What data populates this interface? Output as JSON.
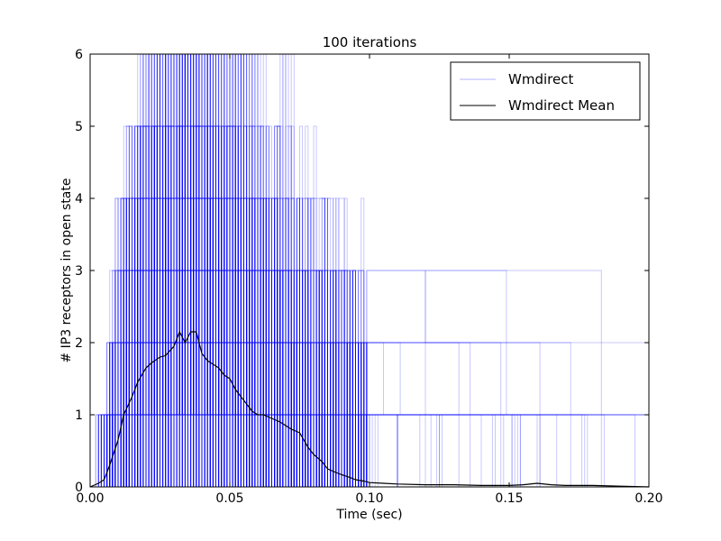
{
  "chart_data": {
    "type": "line",
    "title": "100 iterations",
    "xlabel": "Time (sec)",
    "ylabel": "# IP3 receptors in open state",
    "xlim": [
      0.0,
      0.2
    ],
    "ylim": [
      0,
      6
    ],
    "x_ticks": [
      0.0,
      0.05,
      0.1,
      0.15,
      0.2
    ],
    "x_tick_labels": [
      "0.00",
      "0.05",
      "0.10",
      "0.15",
      "0.20"
    ],
    "y_ticks": [
      0,
      1,
      2,
      3,
      4,
      5,
      6
    ],
    "y_tick_labels": [
      "0",
      "1",
      "2",
      "3",
      "4",
      "5",
      "6"
    ],
    "grid": false,
    "legend_position": "top-right",
    "iterations": 100,
    "series": [
      {
        "name": "Wmdirect",
        "color": "#0000ff",
        "style": "thin-transparent",
        "description_values": "100 stochastic trajectories taking integer values 0–6, dense between 0.00 and 0.08 s, sparse to 0.19 s"
      },
      {
        "name": "Wmdirect Mean",
        "color": "#000000",
        "x": [
          0.0,
          0.003,
          0.005,
          0.007,
          0.01,
          0.012,
          0.015,
          0.017,
          0.02,
          0.022,
          0.025,
          0.027,
          0.03,
          0.032,
          0.034,
          0.036,
          0.038,
          0.04,
          0.042,
          0.044,
          0.046,
          0.048,
          0.05,
          0.052,
          0.054,
          0.056,
          0.058,
          0.06,
          0.062,
          0.065,
          0.068,
          0.07,
          0.072,
          0.075,
          0.078,
          0.08,
          0.083,
          0.085,
          0.088,
          0.09,
          0.093,
          0.095,
          0.098,
          0.1,
          0.105,
          0.11,
          0.12,
          0.13,
          0.14,
          0.15,
          0.155,
          0.16,
          0.165,
          0.17,
          0.175,
          0.18,
          0.19,
          0.2
        ],
        "y": [
          0.0,
          0.05,
          0.1,
          0.3,
          0.65,
          1.0,
          1.25,
          1.45,
          1.65,
          1.72,
          1.8,
          1.82,
          1.95,
          2.15,
          2.0,
          2.15,
          2.15,
          1.85,
          1.75,
          1.7,
          1.65,
          1.55,
          1.5,
          1.35,
          1.25,
          1.15,
          1.05,
          1.0,
          1.0,
          0.95,
          0.9,
          0.85,
          0.8,
          0.75,
          0.55,
          0.45,
          0.35,
          0.25,
          0.2,
          0.17,
          0.13,
          0.1,
          0.08,
          0.06,
          0.05,
          0.04,
          0.03,
          0.03,
          0.02,
          0.02,
          0.03,
          0.05,
          0.03,
          0.02,
          0.02,
          0.02,
          0.01,
          0.0
        ]
      }
    ]
  }
}
